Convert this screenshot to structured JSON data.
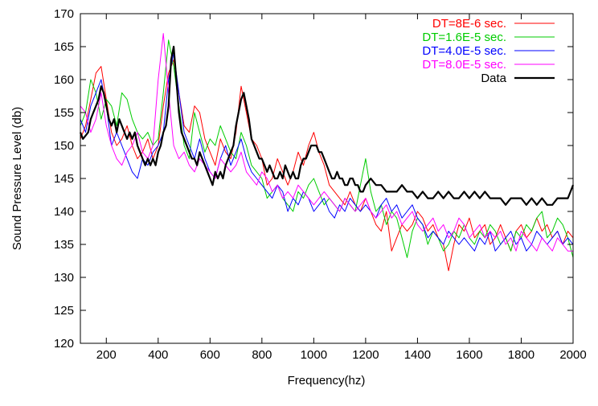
{
  "chart_data": {
    "type": "line",
    "title": "",
    "xlabel": "Frequency(hz)",
    "ylabel": "Sound Pressure Level (db)",
    "xlim": [
      100,
      2000
    ],
    "ylim": [
      120,
      170
    ],
    "x_ticks": [
      200,
      400,
      600,
      800,
      1000,
      1200,
      1400,
      1600,
      1800,
      2000
    ],
    "y_ticks": [
      120,
      125,
      130,
      135,
      140,
      145,
      150,
      155,
      160,
      165,
      170
    ],
    "grid": false,
    "legend_position": "top-right",
    "series": [
      {
        "name": "DT=8E-6 sec.",
        "color": "#ff0000",
        "width": 1,
        "x": [
          100,
          120,
          140,
          160,
          180,
          200,
          220,
          240,
          260,
          280,
          300,
          320,
          340,
          360,
          380,
          400,
          420,
          440,
          460,
          480,
          500,
          520,
          540,
          560,
          580,
          600,
          620,
          640,
          660,
          680,
          700,
          720,
          740,
          760,
          780,
          800,
          820,
          840,
          860,
          880,
          900,
          920,
          940,
          960,
          980,
          1000,
          1020,
          1040,
          1060,
          1080,
          1100,
          1120,
          1140,
          1160,
          1180,
          1200,
          1220,
          1240,
          1260,
          1280,
          1300,
          1320,
          1340,
          1360,
          1380,
          1400,
          1420,
          1440,
          1460,
          1480,
          1500,
          1520,
          1540,
          1560,
          1580,
          1600,
          1620,
          1640,
          1660,
          1680,
          1700,
          1720,
          1740,
          1760,
          1780,
          1800,
          1820,
          1840,
          1860,
          1880,
          1900,
          1920,
          1940,
          1960,
          1980,
          2000
        ],
        "y": [
          151,
          153,
          157,
          161,
          162,
          157,
          152,
          150,
          151,
          153,
          150,
          148,
          149,
          151,
          148,
          150,
          156,
          161,
          163,
          158,
          153,
          152,
          156,
          155,
          151,
          149,
          147,
          151,
          149,
          148,
          152,
          159,
          155,
          151,
          150,
          148,
          144,
          145,
          148,
          146,
          144,
          146,
          149,
          147,
          150,
          152,
          149,
          147,
          144,
          143,
          142,
          141,
          143,
          141,
          140,
          142,
          140,
          138,
          137,
          140,
          134,
          136,
          138,
          137,
          138,
          140,
          139,
          137,
          138,
          136,
          135,
          131,
          135,
          138,
          137,
          139,
          136,
          137,
          138,
          135,
          136,
          138,
          136,
          134,
          137,
          138,
          136,
          137,
          139,
          137,
          138,
          136,
          137,
          135,
          137,
          136
        ]
      },
      {
        "name": "DT=1.6E-5 sec.",
        "color": "#00cc00",
        "width": 1,
        "x": [
          100,
          120,
          140,
          160,
          180,
          200,
          220,
          240,
          260,
          280,
          300,
          320,
          340,
          360,
          380,
          400,
          420,
          440,
          460,
          480,
          500,
          520,
          540,
          560,
          580,
          600,
          620,
          640,
          660,
          680,
          700,
          720,
          740,
          760,
          780,
          800,
          820,
          840,
          860,
          880,
          900,
          920,
          940,
          960,
          980,
          1000,
          1020,
          1040,
          1060,
          1080,
          1100,
          1120,
          1140,
          1160,
          1180,
          1200,
          1220,
          1240,
          1260,
          1280,
          1300,
          1320,
          1340,
          1360,
          1380,
          1400,
          1420,
          1440,
          1460,
          1480,
          1500,
          1520,
          1540,
          1560,
          1580,
          1600,
          1620,
          1640,
          1660,
          1680,
          1700,
          1720,
          1740,
          1760,
          1780,
          1800,
          1820,
          1840,
          1860,
          1880,
          1900,
          1920,
          1940,
          1960,
          1980,
          2000
        ],
        "y": [
          153,
          155,
          160,
          158,
          154,
          157,
          156,
          153,
          158,
          157,
          154,
          152,
          151,
          152,
          150,
          151,
          158,
          166,
          162,
          156,
          150,
          148,
          155,
          152,
          149,
          151,
          150,
          153,
          151,
          149,
          148,
          152,
          150,
          147,
          146,
          145,
          142,
          143,
          144,
          142,
          141,
          140,
          143,
          142,
          144,
          145,
          143,
          141,
          142,
          141,
          140,
          142,
          141,
          140,
          144,
          148,
          143,
          140,
          141,
          138,
          140,
          139,
          136,
          133,
          137,
          139,
          138,
          135,
          137,
          136,
          134,
          135,
          137,
          136,
          138,
          136,
          135,
          137,
          136,
          138,
          137,
          135,
          136,
          134,
          137,
          136,
          138,
          137,
          139,
          140,
          136,
          137,
          139,
          138,
          136,
          133
        ]
      },
      {
        "name": "DT=4.0E-5 sec.",
        "color": "#0000ff",
        "width": 1,
        "x": [
          100,
          120,
          140,
          160,
          180,
          200,
          220,
          240,
          260,
          280,
          300,
          320,
          340,
          360,
          380,
          400,
          420,
          440,
          460,
          480,
          500,
          520,
          540,
          560,
          580,
          600,
          620,
          640,
          660,
          680,
          700,
          720,
          740,
          760,
          780,
          800,
          820,
          840,
          860,
          880,
          900,
          920,
          940,
          960,
          980,
          1000,
          1020,
          1040,
          1060,
          1080,
          1100,
          1120,
          1140,
          1160,
          1180,
          1200,
          1220,
          1240,
          1260,
          1280,
          1300,
          1320,
          1340,
          1360,
          1380,
          1400,
          1420,
          1440,
          1460,
          1480,
          1500,
          1520,
          1540,
          1560,
          1580,
          1600,
          1620,
          1640,
          1660,
          1680,
          1700,
          1720,
          1740,
          1760,
          1780,
          1800,
          1820,
          1840,
          1860,
          1880,
          1900,
          1920,
          1940,
          1960,
          1980,
          2000
        ],
        "y": [
          154,
          152,
          156,
          158,
          160,
          156,
          150,
          152,
          150,
          148,
          146,
          145,
          148,
          147,
          149,
          150,
          152,
          160,
          164,
          158,
          152,
          150,
          148,
          151,
          148,
          146,
          145,
          148,
          150,
          147,
          149,
          151,
          148,
          146,
          145,
          144,
          143,
          142,
          144,
          143,
          140,
          142,
          141,
          143,
          142,
          140,
          141,
          142,
          140,
          139,
          141,
          140,
          142,
          141,
          140,
          141,
          140,
          139,
          141,
          142,
          140,
          141,
          139,
          140,
          141,
          139,
          138,
          136,
          137,
          136,
          135,
          137,
          136,
          135,
          136,
          135,
          134,
          136,
          135,
          137,
          134,
          135,
          136,
          137,
          135,
          136,
          134,
          135,
          137,
          136,
          135,
          136,
          137,
          135,
          136,
          135
        ]
      },
      {
        "name": "DT=8.0E-5 sec.",
        "color": "#ff00ff",
        "width": 1,
        "x": [
          100,
          120,
          140,
          160,
          180,
          200,
          220,
          240,
          260,
          280,
          300,
          320,
          340,
          360,
          380,
          400,
          420,
          440,
          460,
          480,
          500,
          520,
          540,
          560,
          580,
          600,
          620,
          640,
          660,
          680,
          700,
          720,
          740,
          760,
          780,
          800,
          820,
          840,
          860,
          880,
          900,
          920,
          940,
          960,
          980,
          1000,
          1020,
          1040,
          1060,
          1080,
          1100,
          1120,
          1140,
          1160,
          1180,
          1200,
          1220,
          1240,
          1260,
          1280,
          1300,
          1320,
          1340,
          1360,
          1380,
          1400,
          1420,
          1440,
          1460,
          1480,
          1500,
          1520,
          1540,
          1560,
          1580,
          1600,
          1620,
          1640,
          1660,
          1680,
          1700,
          1720,
          1740,
          1760,
          1780,
          1800,
          1820,
          1840,
          1860,
          1880,
          1900,
          1920,
          1940,
          1960,
          1980,
          2000
        ],
        "y": [
          156,
          155,
          152,
          154,
          158,
          153,
          150,
          148,
          147,
          149,
          150,
          152,
          149,
          148,
          150,
          160,
          167,
          158,
          150,
          148,
          149,
          147,
          146,
          148,
          147,
          146,
          145,
          148,
          147,
          146,
          147,
          149,
          146,
          145,
          144,
          146,
          145,
          143,
          144,
          142,
          143,
          142,
          144,
          143,
          142,
          141,
          142,
          143,
          142,
          141,
          140,
          142,
          141,
          140,
          141,
          142,
          140,
          139,
          140,
          141,
          139,
          140,
          138,
          139,
          140,
          138,
          137,
          138,
          139,
          137,
          138,
          136,
          137,
          139,
          138,
          136,
          137,
          138,
          136,
          137,
          136,
          137,
          135,
          136,
          134,
          137,
          136,
          135,
          134,
          136,
          135,
          134,
          136,
          135,
          134,
          134
        ]
      },
      {
        "name": "Data",
        "color": "#000000",
        "width": 2.2,
        "x": [
          100,
          110,
          120,
          130,
          140,
          150,
          160,
          170,
          180,
          190,
          200,
          210,
          220,
          230,
          240,
          250,
          260,
          270,
          280,
          290,
          300,
          310,
          320,
          330,
          340,
          350,
          360,
          370,
          380,
          390,
          400,
          410,
          420,
          430,
          440,
          450,
          460,
          470,
          480,
          490,
          500,
          510,
          520,
          530,
          540,
          550,
          560,
          570,
          580,
          590,
          600,
          610,
          620,
          630,
          640,
          650,
          660,
          670,
          680,
          690,
          700,
          710,
          720,
          730,
          740,
          750,
          760,
          770,
          780,
          790,
          800,
          810,
          820,
          830,
          840,
          850,
          860,
          870,
          880,
          890,
          900,
          910,
          920,
          930,
          940,
          950,
          960,
          970,
          980,
          990,
          1000,
          1010,
          1020,
          1030,
          1040,
          1050,
          1060,
          1070,
          1080,
          1090,
          1100,
          1110,
          1120,
          1130,
          1140,
          1150,
          1160,
          1170,
          1180,
          1190,
          1200,
          1220,
          1240,
          1260,
          1280,
          1300,
          1320,
          1340,
          1360,
          1380,
          1400,
          1420,
          1440,
          1460,
          1480,
          1500,
          1520,
          1540,
          1560,
          1580,
          1600,
          1620,
          1640,
          1660,
          1680,
          1700,
          1720,
          1740,
          1760,
          1780,
          1800,
          1820,
          1840,
          1860,
          1880,
          1900,
          1920,
          1940,
          1960,
          1980,
          1990,
          2000
        ],
        "y": [
          152,
          151,
          151.5,
          152,
          154,
          155,
          156,
          157,
          159,
          158,
          156,
          154,
          153,
          154,
          152,
          154,
          153,
          152,
          151,
          152,
          151,
          152,
          150,
          149,
          148,
          147,
          148,
          147,
          148,
          147,
          149,
          150,
          152,
          153,
          156,
          163,
          165,
          160,
          155,
          152,
          151,
          150,
          149,
          148,
          148,
          147,
          149,
          148,
          147,
          146,
          145,
          144,
          146,
          145,
          146,
          145,
          147,
          148,
          149,
          150,
          153,
          155,
          157,
          158,
          156,
          154,
          151,
          150,
          149,
          148,
          148,
          147,
          146,
          147,
          146,
          145,
          145,
          146,
          145,
          147,
          146,
          145,
          146,
          145,
          145,
          147,
          148,
          148,
          149,
          150,
          150,
          150,
          149,
          149,
          148,
          147,
          146,
          145,
          145,
          146,
          145,
          145,
          144,
          144,
          145,
          145,
          144,
          144,
          143,
          143,
          144,
          145,
          144,
          144,
          143,
          143,
          143,
          144,
          143,
          143,
          142,
          143,
          142,
          142,
          143,
          142,
          143,
          142,
          142,
          143,
          142,
          143,
          142,
          143,
          142,
          142,
          142,
          141,
          142,
          142,
          142,
          141,
          142,
          141,
          142,
          141,
          141,
          142,
          142,
          142,
          143,
          144
        ]
      }
    ]
  }
}
